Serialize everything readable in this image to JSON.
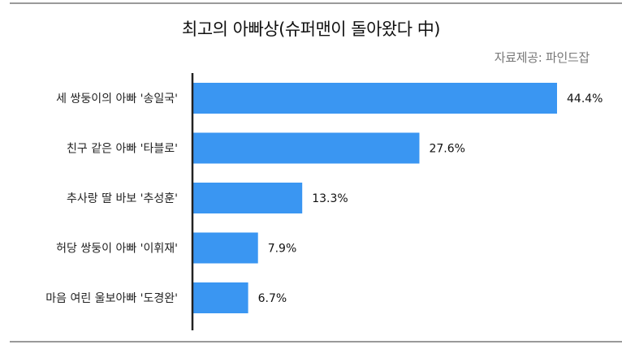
{
  "chart_data": {
    "type": "bar",
    "orientation": "horizontal",
    "title": "최고의 아빠상(슈퍼맨이 돌아왔다 中)",
    "source": "자료제공: 파인드잡",
    "categories": [
      "세 쌍둥이의 아빠 '송일국'",
      "친구 같은 아빠 '타블로'",
      "추사랑 딸 바보 '추성훈'",
      "허당 쌍둥이 아빠 '이휘재'",
      "마음 여린 울보아빠 '도경완'"
    ],
    "values": [
      44.4,
      27.6,
      13.3,
      7.9,
      6.7
    ],
    "value_labels": [
      "44.4%",
      "27.6%",
      "13.3%",
      "7.9%",
      "6.7%"
    ],
    "xlim": [
      0,
      50
    ],
    "unit": "%",
    "bar_color": "#3a96f2",
    "grid": false
  }
}
